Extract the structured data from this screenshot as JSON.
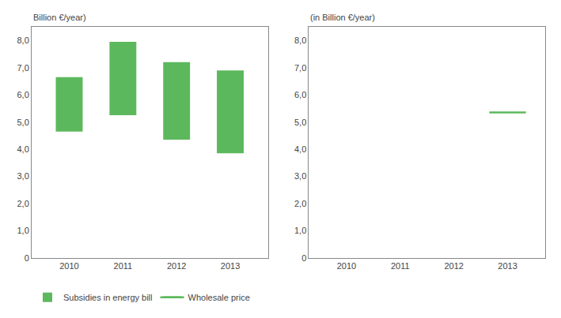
{
  "chart_data": [
    {
      "type": "bar",
      "ylabel": "Billion €/year)",
      "x": [
        2010,
        2011,
        2012,
        2013
      ],
      "series": [
        {
          "name": "Subsidies in energy bill",
          "color": "#5cb85c",
          "bottoms": [
            4.65,
            5.25,
            4.35,
            3.85
          ],
          "tops": [
            6.65,
            7.95,
            7.2,
            6.9
          ]
        }
      ],
      "xlim": [
        2009.3,
        2013.7
      ],
      "xticks": [
        2010,
        2011,
        2012,
        2013
      ],
      "ylim": [
        0,
        8.5
      ],
      "yticks": [
        0,
        {
          "value": 1.0,
          "label": "1,0"
        },
        {
          "value": 2.0,
          "label": "2,0"
        },
        {
          "value": 3.0,
          "label": "3,0"
        },
        {
          "value": 4.0,
          "label": "4,0"
        },
        {
          "value": 5.0,
          "label": "5,0"
        },
        {
          "value": 6.0,
          "label": "6,0"
        },
        {
          "value": 7.0,
          "label": "7,0"
        },
        {
          "value": 8.0,
          "label": "8,0"
        }
      ],
      "grid": false,
      "legend": "lower left"
    },
    {
      "type": "line",
      "ylabel": "(in Billion €/year)",
      "x": [
        2010,
        2011,
        2012,
        2013
      ],
      "series": [
        {
          "name": "Wholesale price",
          "color": "#5cb85c",
          "values": [
            null,
            null,
            null,
            5.35
          ]
        }
      ],
      "xlim": [
        2009.3,
        2013.7
      ],
      "xticks": [
        2010,
        2011,
        2012,
        2013
      ],
      "ylim": [
        0,
        8.5
      ],
      "yticks": [
        0,
        {
          "value": 1.0,
          "label": "1,0"
        },
        {
          "value": 2.0,
          "label": "2,0"
        },
        {
          "value": 3.0,
          "label": "3,0"
        },
        {
          "value": 4.0,
          "label": "4,0"
        },
        {
          "value": 5.0,
          "label": "5,0"
        },
        {
          "value": 6.0,
          "label": "6,0"
        },
        {
          "value": 7.0,
          "label": "7,0"
        },
        {
          "value": 8.0,
          "label": "8,0"
        }
      ],
      "grid": false
    }
  ]
}
